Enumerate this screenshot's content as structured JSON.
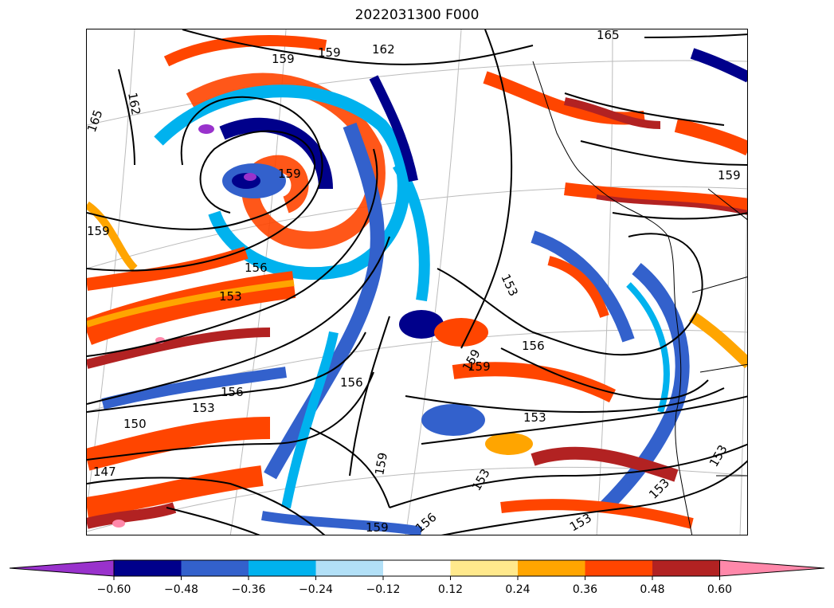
{
  "title": "2022031300 F000",
  "map": {
    "field": "shaded anomaly",
    "contour_labels": [
      "165",
      "162",
      "159",
      "159",
      "162",
      "159",
      "165",
      "159",
      "156",
      "153",
      "153",
      "156",
      "156",
      "159",
      "159",
      "156",
      "153",
      "150",
      "147",
      "159",
      "153",
      "159",
      "156",
      "153",
      "153",
      "153",
      "153",
      "159"
    ],
    "colors": {
      "background": "#ffffff",
      "contour": "#000000",
      "coast": "#000000",
      "graticule": "#bbbbbb"
    }
  },
  "colorbar": {
    "levels": [
      "−0.60",
      "−0.48",
      "−0.36",
      "−0.24",
      "−0.12",
      "0.12",
      "0.24",
      "0.36",
      "0.48",
      "0.60"
    ],
    "colors": [
      "#9932cc",
      "#00008b",
      "#3361cc",
      "#00b2ee",
      "#b2e0f7",
      "#ffffff",
      "#ffe98c",
      "#ffa500",
      "#ff4500",
      "#b22222",
      "#ff88aa"
    ]
  }
}
